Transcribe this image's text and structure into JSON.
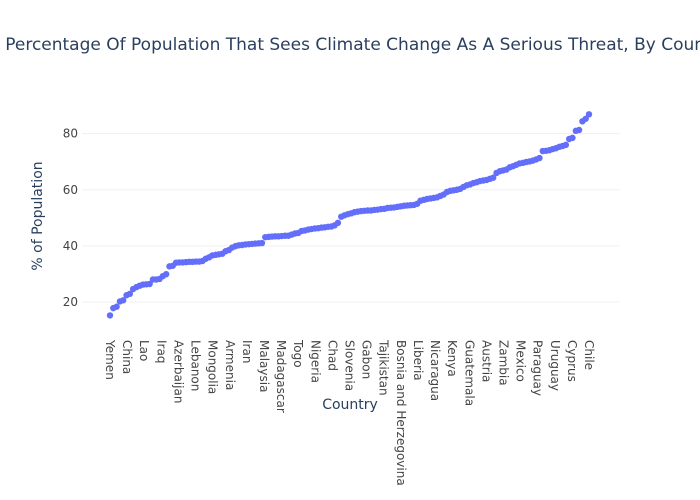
{
  "chart_data": {
    "type": "scatter",
    "title": "Percentage Of Population That Sees Climate Change As A Serious Threat, By Country",
    "xlabel": "Country",
    "ylabel": "% of Population",
    "ylim": [
      10,
      92
    ],
    "yticks": [
      20,
      40,
      60,
      80
    ],
    "grid": true,
    "color": "#636efa",
    "x_tick_labels": [
      "Yemen",
      "China",
      "Lao",
      "Iraq",
      "Azerbaijan",
      "Lebanon",
      "Mongolia",
      "Armenia",
      "Iran",
      "Malaysia",
      "Madagascar",
      "Togo",
      "Nigeria",
      "Chad",
      "Slovenia",
      "Gabon",
      "Tajikistan",
      "Bosnia and Herzegovina",
      "Liberia",
      "Nicaragua",
      "Kenya",
      "Guatemala",
      "Austria",
      "Zambia",
      "Mexico",
      "Paraguay",
      "Uruguay",
      "Cyprus",
      "Chile"
    ],
    "values": [
      15.2,
      17.8,
      18.3,
      20.2,
      20.6,
      22.4,
      22.9,
      24.6,
      25.3,
      25.8,
      26.2,
      26.3,
      26.4,
      28.0,
      28.0,
      28.2,
      29.2,
      29.9,
      32.7,
      32.9,
      34.0,
      34.1,
      34.1,
      34.2,
      34.3,
      34.3,
      34.4,
      34.4,
      34.6,
      35.4,
      35.9,
      36.6,
      36.8,
      37.0,
      37.2,
      38.1,
      38.5,
      39.4,
      39.9,
      40.2,
      40.3,
      40.5,
      40.6,
      40.7,
      40.8,
      40.9,
      41.0,
      43.1,
      43.2,
      43.3,
      43.4,
      43.4,
      43.5,
      43.6,
      43.6,
      44.0,
      44.4,
      44.6,
      45.3,
      45.5,
      45.8,
      46.0,
      46.2,
      46.3,
      46.5,
      46.6,
      46.8,
      46.9,
      47.3,
      48.2,
      50.4,
      50.9,
      51.3,
      51.6,
      52.0,
      52.2,
      52.4,
      52.5,
      52.6,
      52.6,
      52.8,
      52.9,
      53.1,
      53.2,
      53.5,
      53.6,
      53.7,
      53.9,
      54.1,
      54.3,
      54.4,
      54.5,
      54.6,
      55.0,
      56.1,
      56.4,
      56.7,
      56.9,
      57.1,
      57.3,
      57.8,
      58.3,
      59.2,
      59.6,
      59.8,
      60.0,
      60.3,
      61.0,
      61.6,
      61.9,
      62.4,
      62.7,
      63.1,
      63.3,
      63.5,
      63.9,
      64.3,
      66.0,
      66.6,
      66.9,
      67.2,
      68.0,
      68.4,
      68.9,
      69.4,
      69.6,
      69.9,
      70.1,
      70.4,
      70.8,
      71.3,
      73.8,
      73.9,
      74.1,
      74.5,
      74.8,
      75.3,
      75.6,
      76.0,
      78.1,
      78.5,
      81.0,
      81.3,
      84.4,
      85.3,
      86.9
    ]
  }
}
